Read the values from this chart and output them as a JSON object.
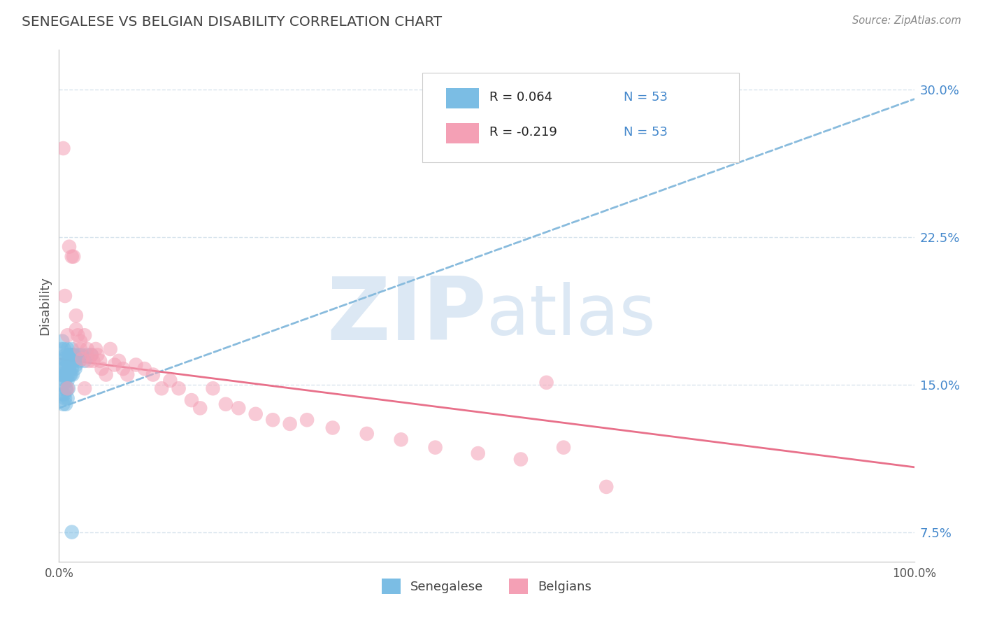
{
  "title": "SENEGALESE VS BELGIAN DISABILITY CORRELATION CHART",
  "source_text": "Source: ZipAtlas.com",
  "ylabel": "Disability",
  "xlim": [
    0.0,
    1.0
  ],
  "ylim": [
    0.06,
    0.32
  ],
  "yticks": [
    0.075,
    0.15,
    0.225,
    0.3
  ],
  "ytick_labels": [
    "7.5%",
    "15.0%",
    "22.5%",
    "30.0%"
  ],
  "xticks": [
    0.0,
    1.0
  ],
  "xtick_labels": [
    "0.0%",
    "100.0%"
  ],
  "legend_r": [
    "R = 0.064",
    "R = -0.219"
  ],
  "legend_n": [
    "N = 53",
    "N = 53"
  ],
  "blue_color": "#7bbde4",
  "pink_color": "#f4a0b5",
  "line_blue_color": "#88bbdd",
  "line_pink_color": "#e8708a",
  "watermark_zip": "ZIP",
  "watermark_atlas": "atlas",
  "watermark_color": "#dce8f4",
  "grid_color": "#d8e4ed",
  "background_color": "#ffffff",
  "blue_scatter_x": [
    0.002,
    0.003,
    0.003,
    0.004,
    0.004,
    0.004,
    0.005,
    0.005,
    0.005,
    0.005,
    0.006,
    0.006,
    0.006,
    0.007,
    0.007,
    0.007,
    0.008,
    0.008,
    0.008,
    0.008,
    0.009,
    0.009,
    0.009,
    0.01,
    0.01,
    0.01,
    0.01,
    0.011,
    0.011,
    0.011,
    0.012,
    0.012,
    0.013,
    0.013,
    0.014,
    0.014,
    0.015,
    0.015,
    0.016,
    0.016,
    0.017,
    0.018,
    0.019,
    0.02,
    0.021,
    0.022,
    0.024,
    0.025,
    0.027,
    0.03,
    0.033,
    0.038,
    0.015
  ],
  "blue_scatter_y": [
    0.155,
    0.168,
    0.162,
    0.172,
    0.155,
    0.145,
    0.158,
    0.163,
    0.15,
    0.14,
    0.168,
    0.155,
    0.145,
    0.16,
    0.152,
    0.143,
    0.165,
    0.155,
    0.148,
    0.14,
    0.162,
    0.155,
    0.147,
    0.168,
    0.16,
    0.152,
    0.143,
    0.162,
    0.155,
    0.148,
    0.165,
    0.158,
    0.162,
    0.155,
    0.165,
    0.155,
    0.168,
    0.158,
    0.165,
    0.155,
    0.165,
    0.162,
    0.158,
    0.16,
    0.163,
    0.165,
    0.162,
    0.165,
    0.165,
    0.162,
    0.165,
    0.165,
    0.075
  ],
  "pink_scatter_x": [
    0.005,
    0.007,
    0.01,
    0.012,
    0.015,
    0.017,
    0.02,
    0.022,
    0.025,
    0.027,
    0.03,
    0.033,
    0.035,
    0.038,
    0.04,
    0.043,
    0.045,
    0.048,
    0.05,
    0.055,
    0.06,
    0.065,
    0.07,
    0.075,
    0.08,
    0.09,
    0.1,
    0.11,
    0.12,
    0.13,
    0.14,
    0.155,
    0.165,
    0.18,
    0.195,
    0.21,
    0.23,
    0.25,
    0.27,
    0.29,
    0.32,
    0.36,
    0.4,
    0.44,
    0.49,
    0.54,
    0.59,
    0.64,
    0.02,
    0.025,
    0.03,
    0.01,
    0.57
  ],
  "pink_scatter_y": [
    0.27,
    0.195,
    0.175,
    0.22,
    0.215,
    0.215,
    0.185,
    0.175,
    0.168,
    0.163,
    0.175,
    0.168,
    0.162,
    0.165,
    0.162,
    0.168,
    0.165,
    0.162,
    0.158,
    0.155,
    0.168,
    0.16,
    0.162,
    0.158,
    0.155,
    0.16,
    0.158,
    0.155,
    0.148,
    0.152,
    0.148,
    0.142,
    0.138,
    0.148,
    0.14,
    0.138,
    0.135,
    0.132,
    0.13,
    0.132,
    0.128,
    0.125,
    0.122,
    0.118,
    0.115,
    0.112,
    0.118,
    0.098,
    0.178,
    0.172,
    0.148,
    0.148,
    0.151
  ],
  "blue_line_x": [
    0.0,
    1.0
  ],
  "blue_line_y": [
    0.138,
    0.295
  ],
  "pink_line_x": [
    0.0,
    1.0
  ],
  "pink_line_y": [
    0.163,
    0.108
  ]
}
